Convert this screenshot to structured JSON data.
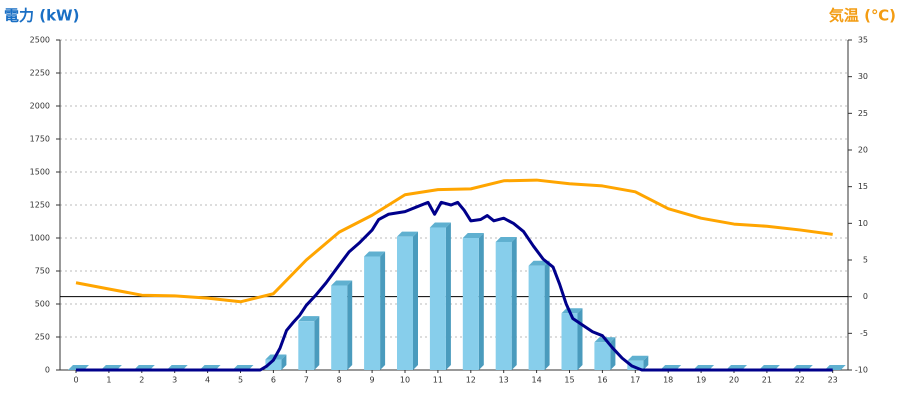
{
  "chart_data": {
    "type": "bar-line",
    "title_left": "電力 (kW)",
    "title_right": "気温 (℃)",
    "categories": [
      "0",
      "1",
      "2",
      "3",
      "4",
      "5",
      "6",
      "7",
      "8",
      "9",
      "10",
      "11",
      "12",
      "13",
      "14",
      "15",
      "16",
      "17",
      "18",
      "19",
      "20",
      "21",
      "22",
      "23"
    ],
    "ylim": [
      0,
      2500
    ],
    "yticks": [
      0,
      250,
      500,
      750,
      1000,
      1250,
      1500,
      1750,
      2000,
      2250,
      2500
    ],
    "y2lim": [
      -10,
      35
    ],
    "y2ticks": [
      -10,
      -5,
      0,
      5,
      10,
      15,
      20,
      25,
      30,
      35
    ],
    "grid": true,
    "series": [
      {
        "type": "bar",
        "color": "#87ceeb",
        "values": [
          0,
          0,
          0,
          0,
          0,
          0,
          80,
          370,
          640,
          860,
          1010,
          1080,
          1000,
          970,
          790,
          430,
          210,
          70,
          0,
          0,
          0,
          0,
          0,
          0
        ]
      },
      {
        "type": "line",
        "color": "#00008b",
        "x": [
          0,
          5.6,
          5.8,
          6.0,
          6.2,
          6.4,
          6.6,
          6.8,
          7.0,
          7.3,
          7.6,
          8.0,
          8.3,
          8.6,
          9.0,
          9.2,
          9.5,
          10.0,
          10.4,
          10.7,
          10.9,
          11.1,
          11.4,
          11.6,
          11.8,
          12.0,
          12.3,
          12.5,
          12.7,
          13.0,
          13.3,
          13.6,
          13.9,
          14.2,
          14.5,
          14.7,
          14.9,
          15.1,
          15.4,
          15.7,
          16.0,
          16.3,
          16.6,
          16.9,
          17.2,
          23
        ],
        "values": [
          0,
          0,
          30,
          75,
          165,
          300,
          360,
          415,
          490,
          570,
          660,
          795,
          895,
          960,
          1060,
          1140,
          1180,
          1200,
          1240,
          1270,
          1180,
          1270,
          1250,
          1270,
          1210,
          1130,
          1140,
          1170,
          1130,
          1150,
          1110,
          1050,
          940,
          840,
          780,
          650,
          500,
          390,
          340,
          290,
          260,
          170,
          90,
          30,
          0,
          0
        ]
      },
      {
        "type": "line",
        "color": "#ffa500",
        "axis": "y2",
        "values": [
          1.9,
          1.05,
          0.2,
          0.1,
          -0.2,
          -0.7,
          0.4,
          5.0,
          8.8,
          11.1,
          13.9,
          14.6,
          14.7,
          15.8,
          15.9,
          15.4,
          15.1,
          14.3,
          12.0,
          10.7,
          9.9,
          9.6,
          9.1,
          8.5
        ]
      }
    ]
  }
}
